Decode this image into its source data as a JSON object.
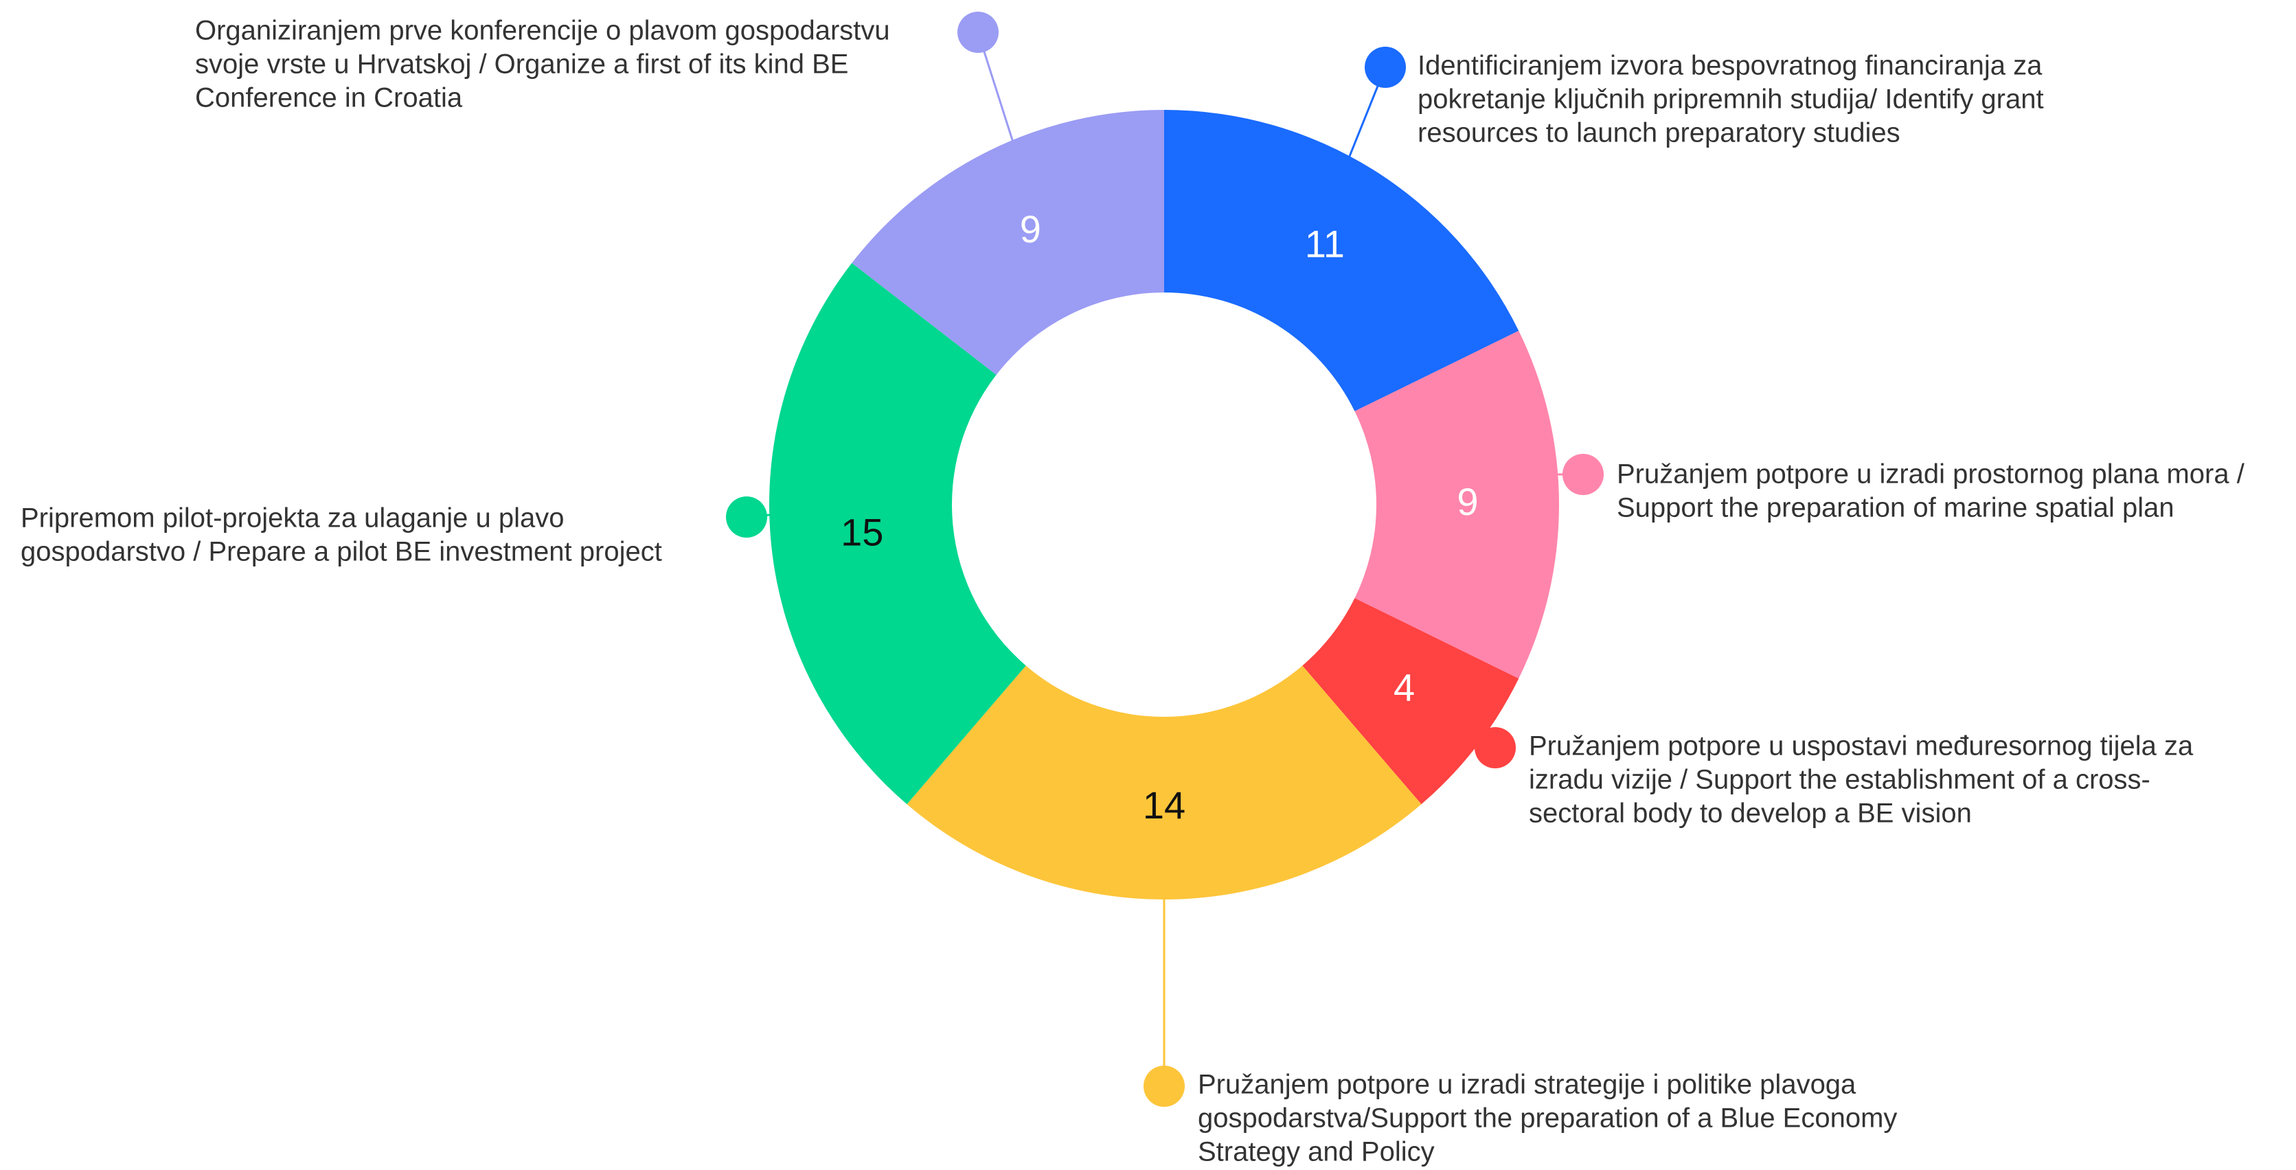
{
  "chart_data": {
    "type": "donut",
    "categories": [
      [
        "Identificiranjem izvora bespovratnog financiranja za",
        "pokretanje ključnih pripremnih studija/ Identify grant",
        "resources to launch preparatory studies"
      ],
      [
        "Pružanjem potpore u izradi prostornog plana mora /",
        "Support the preparation of marine spatial plan"
      ],
      [
        "Pružanjem potpore u uspostavi međuresornog tijela za",
        "izradu vizije / Support the establishment of a cross-",
        "sectoral body to develop a BE vision"
      ],
      [
        "Pružanjem potpore u izradi strategije i politike plavoga",
        "gospodarstva/Support the preparation of a Blue Economy",
        "Strategy and Policy"
      ],
      [
        "Pripremom pilot-projekta za ulaganje u plavo",
        "gospodarstvo / Prepare a pilot BE investment project"
      ],
      [
        "Organiziranjem prve konferencije o plavom gospodarstvu",
        "svoje vrste u Hrvatskoj / Organize a first of its kind BE",
        "Conference in Croatia"
      ]
    ],
    "values": [
      11,
      9,
      4,
      14,
      15,
      9
    ],
    "colors": [
      "#1a6bff",
      "#ff85ac",
      "#ff4242",
      "#fdc53a",
      "#00d78f",
      "#9b9cf4"
    ],
    "label_colors": [
      "#ffffff",
      "#ffffff",
      "#ffffff",
      "#111111",
      "#111111",
      "#ffffff"
    ]
  }
}
